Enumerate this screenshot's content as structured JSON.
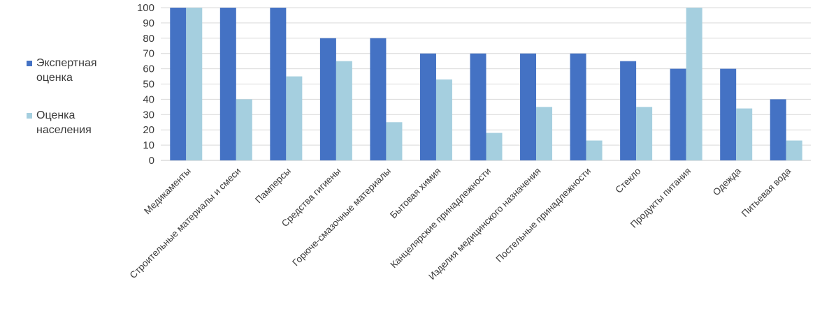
{
  "chart_data": {
    "type": "bar",
    "title": "",
    "xlabel": "",
    "ylabel": "",
    "ylim": [
      0,
      100
    ],
    "yticks": [
      0,
      10,
      20,
      30,
      40,
      50,
      60,
      70,
      80,
      90,
      100
    ],
    "grid": true,
    "legend_position": "left",
    "categories": [
      "Медикаменты",
      "Строительные материалы и смеси",
      "Памперсы",
      "Средства гигиены",
      "Горюче-смазочные материалы",
      "Бытовая химия",
      "Канцелярские принадлежности",
      "Изделия медицинского назначения",
      "Постельные принадлежности",
      "Стекло",
      "Продукты питания",
      "Одежда",
      "Питьевая вода"
    ],
    "series": [
      {
        "name": "Экспертная оценка",
        "color": "#4472c4",
        "values": [
          100,
          100,
          100,
          80,
          80,
          70,
          70,
          70,
          70,
          65,
          60,
          60,
          40
        ]
      },
      {
        "name": "Оценка населения",
        "color": "#a5cfdf",
        "values": [
          100,
          40,
          55,
          65,
          25,
          53,
          18,
          35,
          13,
          35,
          100,
          34,
          13
        ]
      }
    ]
  },
  "legend": {
    "items": [
      {
        "label_line1": "Экспертная",
        "label_line2": "оценка",
        "color": "#4472c4"
      },
      {
        "label_line1": "Оценка",
        "label_line2": "населения",
        "color": "#a5cfdf"
      }
    ]
  }
}
